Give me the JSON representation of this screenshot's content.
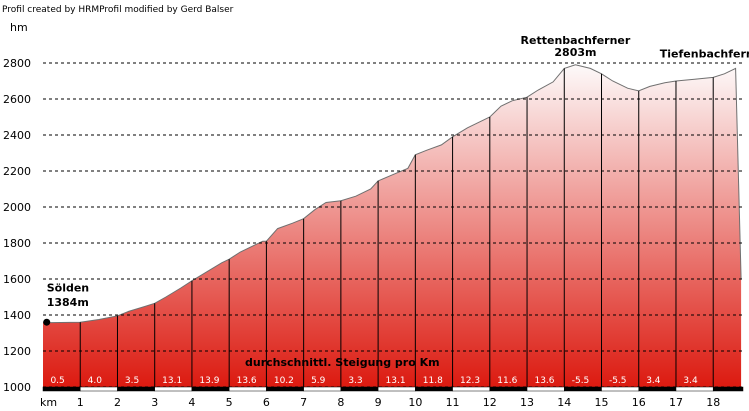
{
  "chart_data": {
    "type": "area",
    "credit": "Profil created by HRMProfil modified by Gerd Balser",
    "ylabel": "hm",
    "xlabel": "km",
    "ylim": [
      1000,
      2800
    ],
    "xlim": [
      0,
      18.8
    ],
    "yticks": [
      1000,
      1200,
      1400,
      1600,
      1800,
      2000,
      2200,
      2400,
      2600,
      2800
    ],
    "xticks": [
      1,
      2,
      3,
      4,
      5,
      6,
      7,
      8,
      9,
      10,
      11,
      12,
      13,
      14,
      15,
      16,
      17,
      18
    ],
    "x": [
      0,
      0.2,
      1,
      1.5,
      2,
      2.3,
      2.7,
      3,
      3.3,
      3.7,
      4,
      4.4,
      4.8,
      5,
      5.3,
      5.7,
      5.9,
      6,
      6.3,
      6.7,
      7,
      7.3,
      7.6,
      8,
      8.4,
      8.8,
      9,
      9.4,
      9.8,
      10,
      10.3,
      10.7,
      11,
      11.4,
      11.8,
      12,
      12.3,
      12.6,
      13,
      13.3,
      13.7,
      14,
      14.3,
      14.7,
      15,
      15.3,
      15.7,
      16,
      16.3,
      16.7,
      17,
      17.5,
      18,
      18.3,
      18.6,
      18.75
    ],
    "y": [
      1360,
      1358,
      1360,
      1375,
      1395,
      1420,
      1445,
      1465,
      1500,
      1550,
      1590,
      1640,
      1690,
      1710,
      1750,
      1790,
      1810,
      1810,
      1880,
      1910,
      1935,
      1985,
      2025,
      2035,
      2060,
      2100,
      2145,
      2180,
      2215,
      2290,
      2315,
      2345,
      2390,
      2440,
      2480,
      2500,
      2560,
      2590,
      2610,
      2650,
      2695,
      2770,
      2790,
      2770,
      2740,
      2700,
      2660,
      2645,
      2670,
      2690,
      2700,
      2710,
      2720,
      2740,
      2770,
      1600
    ],
    "start_marker": {
      "x": 0.1,
      "y": 1360
    },
    "annotations": [
      {
        "text": "Sölden",
        "x": 0.1,
        "y": 1530
      },
      {
        "text": "1384m",
        "x": 0.1,
        "y": 1450
      },
      {
        "text": "Rettenbachferner",
        "x": 14.3,
        "y": 2905
      },
      {
        "text": "2803m",
        "x": 14.3,
        "y": 2840
      },
      {
        "text": "Tiefenbachferner",
        "x": 18.0,
        "y": 2830
      }
    ],
    "gradient_title": "durchschnittl. Steigung pro Km",
    "gradients": [
      "0.5",
      "4.0",
      "3.5",
      "13.1",
      "13.9",
      "13.6",
      "10.2",
      "5.9",
      "3.3",
      "13.1",
      "11.8",
      "12.3",
      "11.6",
      "13.6",
      "-5.5",
      "-5.5",
      "3.4",
      "3.4"
    ],
    "gradient_positions": [
      0.2,
      1.2,
      2.2,
      3.2,
      4.2,
      5.2,
      6.2,
      7.2,
      8.2,
      9.2,
      10.2,
      11.2,
      12.2,
      13.2,
      14.2,
      15.2,
      16.2,
      17.2
    ],
    "colors": {
      "fill_top": "#fdfafa",
      "fill_bottom": "#dc1a10",
      "line": "#707070",
      "grid": "#000000",
      "gradient_text": "#ffffff"
    }
  }
}
